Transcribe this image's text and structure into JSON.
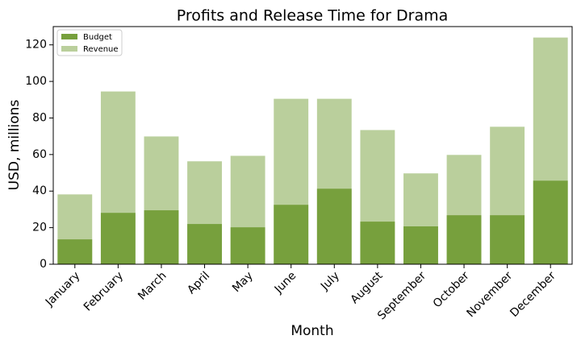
{
  "chart_data": {
    "type": "bar",
    "title": "Profits and Release Time for Drama",
    "x_label": "Month",
    "y_label": "USD, millions",
    "categories": [
      "January",
      "February",
      "March",
      "April",
      "May",
      "June",
      "July",
      "August",
      "September",
      "October",
      "November",
      "December"
    ],
    "series": [
      {
        "name": "Budget",
        "color": "#77a03d",
        "values": [
          13.6,
          28.1,
          29.5,
          22,
          20.2,
          32.5,
          41.3,
          23.3,
          20.7,
          26.8,
          26.8,
          45.7
        ]
      },
      {
        "name": "Revenue",
        "color": "#bacf9c",
        "values": [
          38.2,
          94.5,
          69.9,
          56.3,
          59.3,
          90.5,
          90.5,
          73.4,
          49.7,
          59.8,
          75.2,
          124
        ]
      }
    ],
    "ylim": [
      0,
      130
    ],
    "yticks": [
      0,
      20,
      40,
      60,
      80,
      100,
      120
    ],
    "legend": "upper left"
  }
}
